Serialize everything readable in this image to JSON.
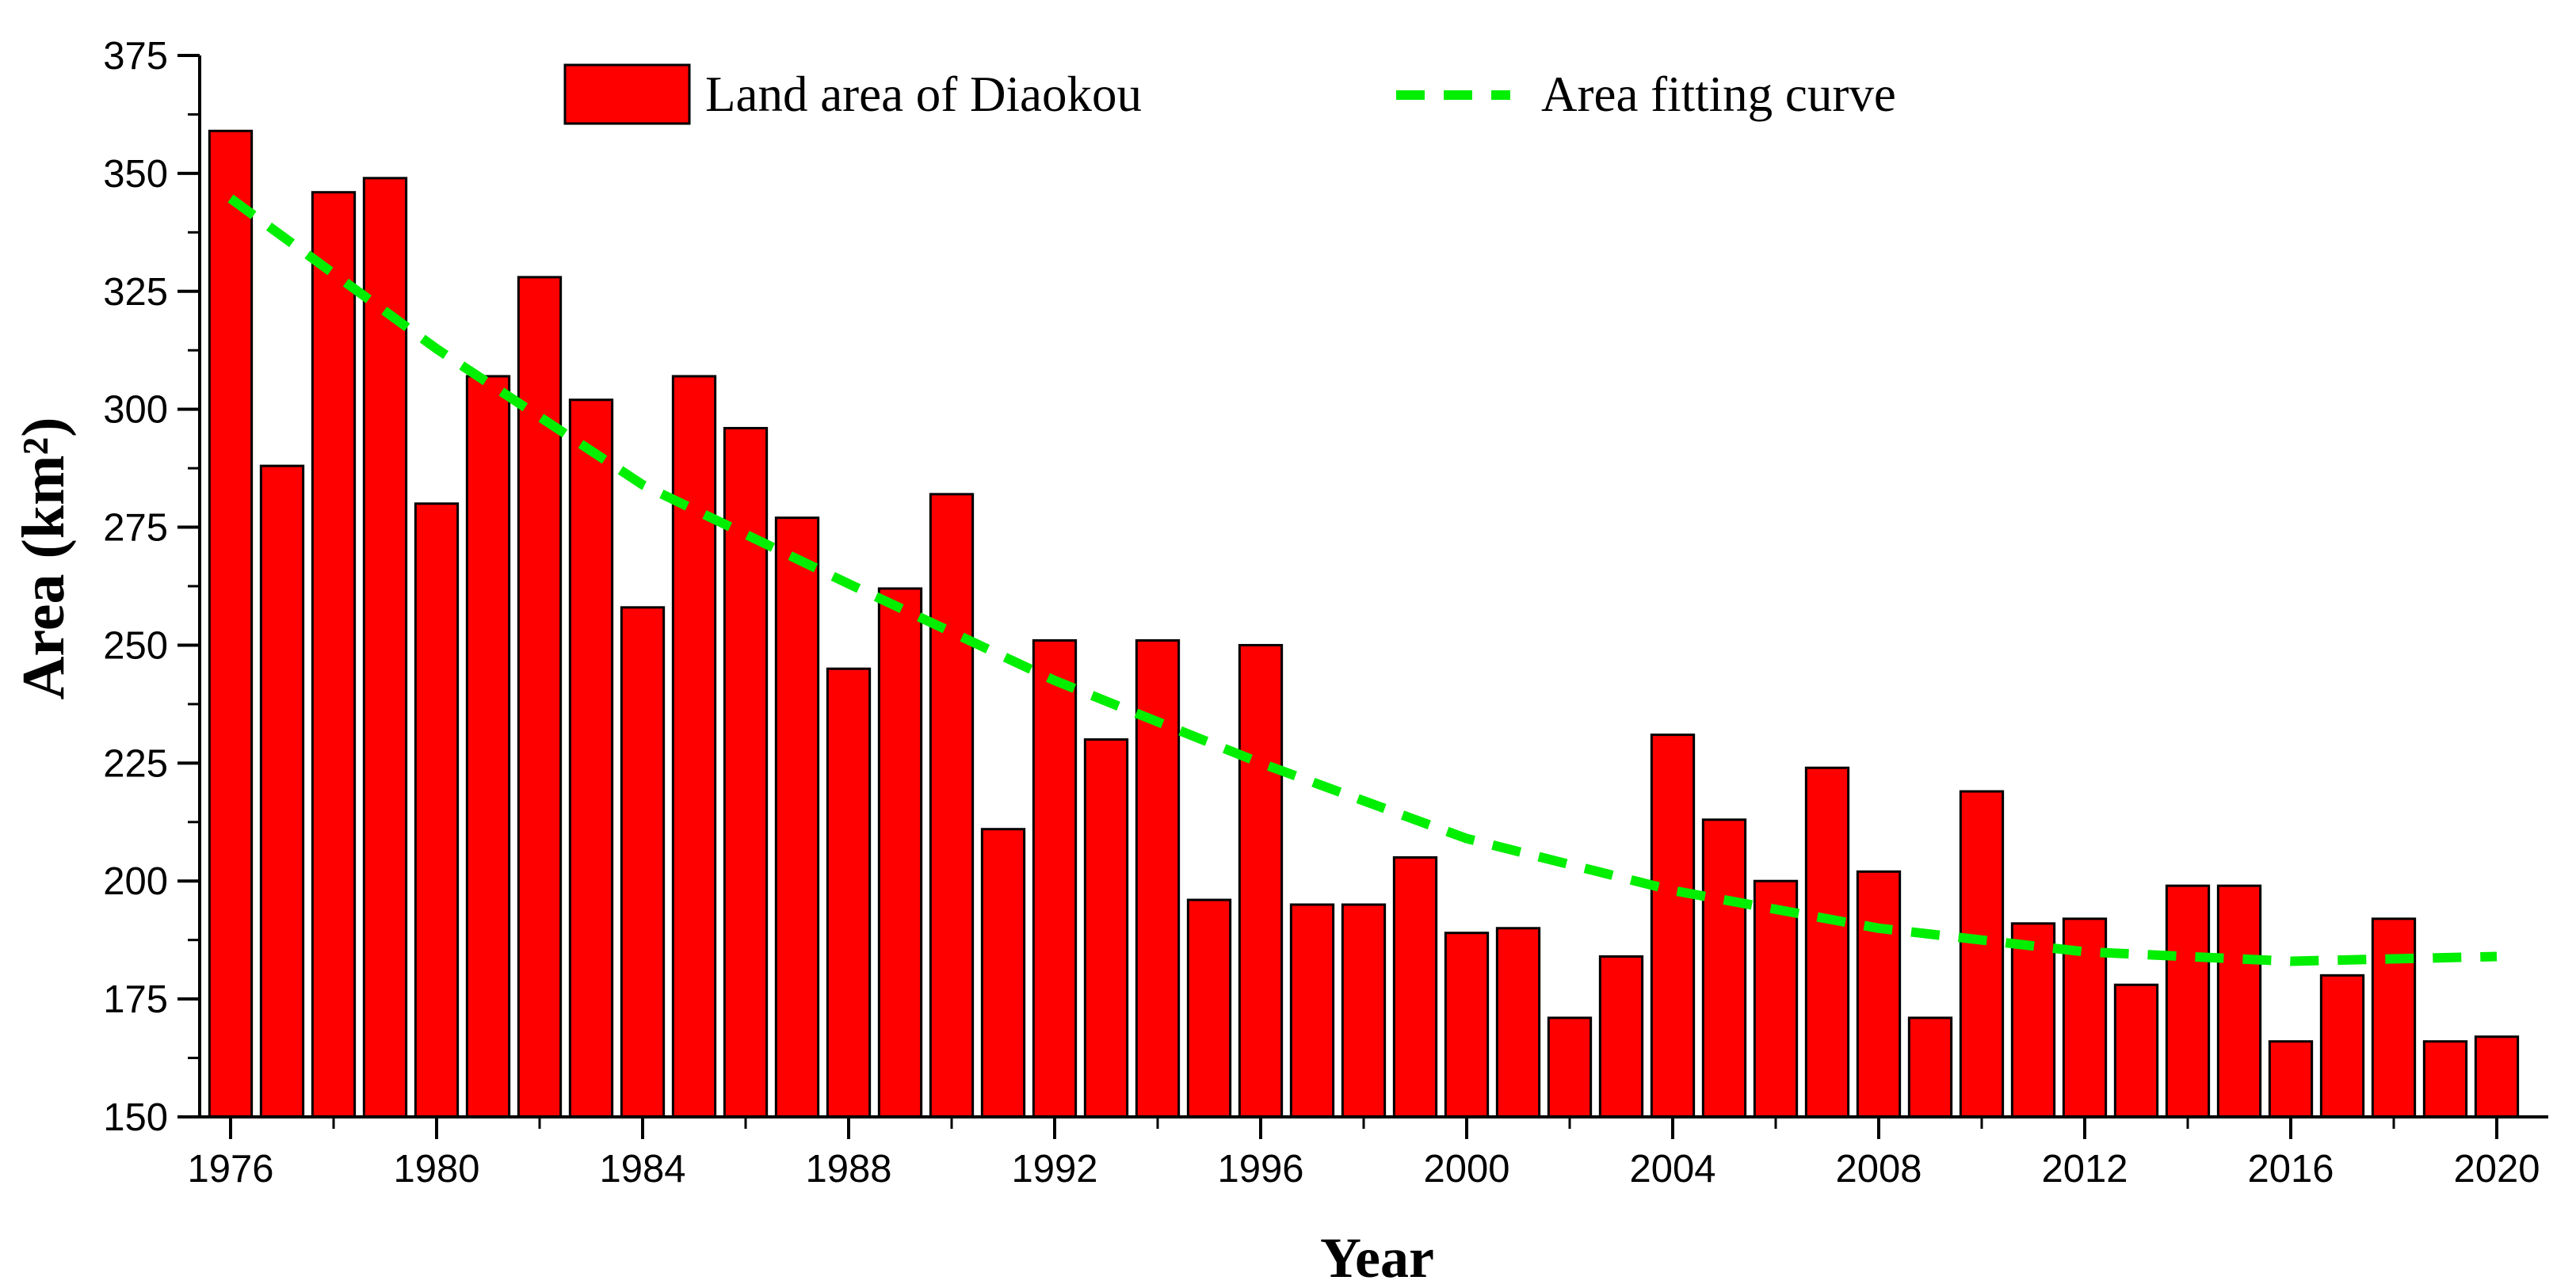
{
  "chart_data": {
    "type": "bar",
    "title": "",
    "xlabel": "Year",
    "ylabel": "Area (km²)",
    "ylim": [
      150,
      375
    ],
    "xlim": [
      1975.4,
      2021.0
    ],
    "yticks": [
      150,
      175,
      200,
      225,
      250,
      275,
      300,
      325,
      350,
      375
    ],
    "xticks": [
      1976,
      1980,
      1984,
      1988,
      1992,
      1996,
      2000,
      2004,
      2008,
      2012,
      2016,
      2020
    ],
    "grid": false,
    "legend_position": "top",
    "colors": {
      "bar": "#ff0000",
      "bar_edge": "#000000",
      "fit": "#00ee00"
    },
    "series": [
      {
        "name": "Land area of Diaokou",
        "type": "bar",
        "x": [
          1976,
          1977,
          1978,
          1979,
          1980,
          1981,
          1982,
          1983,
          1984,
          1985,
          1986,
          1987,
          1988,
          1989,
          1990,
          1991,
          1992,
          1993,
          1994,
          1995,
          1996,
          1997,
          1998,
          1999,
          2000,
          2001,
          2002,
          2003,
          2004,
          2005,
          2006,
          2007,
          2008,
          2009,
          2010,
          2011,
          2012,
          2013,
          2014,
          2015,
          2016,
          2017,
          2018,
          2019,
          2020
        ],
        "values": [
          359,
          288,
          346,
          349,
          280,
          307,
          328,
          302,
          258,
          307,
          296,
          277,
          245,
          262,
          282,
          211,
          251,
          230,
          251,
          196,
          250,
          195,
          195,
          205,
          189,
          190,
          171,
          184,
          231,
          213,
          200,
          224,
          202,
          171,
          219,
          191,
          192,
          178,
          199,
          199,
          166,
          180,
          192,
          166,
          167
        ]
      },
      {
        "name": "Area fitting curve",
        "type": "line",
        "style": "dashed",
        "x": [
          1976,
          1980,
          1984,
          1988,
          1992,
          1996,
          2000,
          2004,
          2008,
          2012,
          2016,
          2020
        ],
        "values": [
          344.7,
          312.8,
          284.0,
          263.0,
          242.5,
          225.0,
          209.0,
          198.0,
          190.0,
          185.0,
          183.0,
          184.0
        ]
      }
    ]
  }
}
